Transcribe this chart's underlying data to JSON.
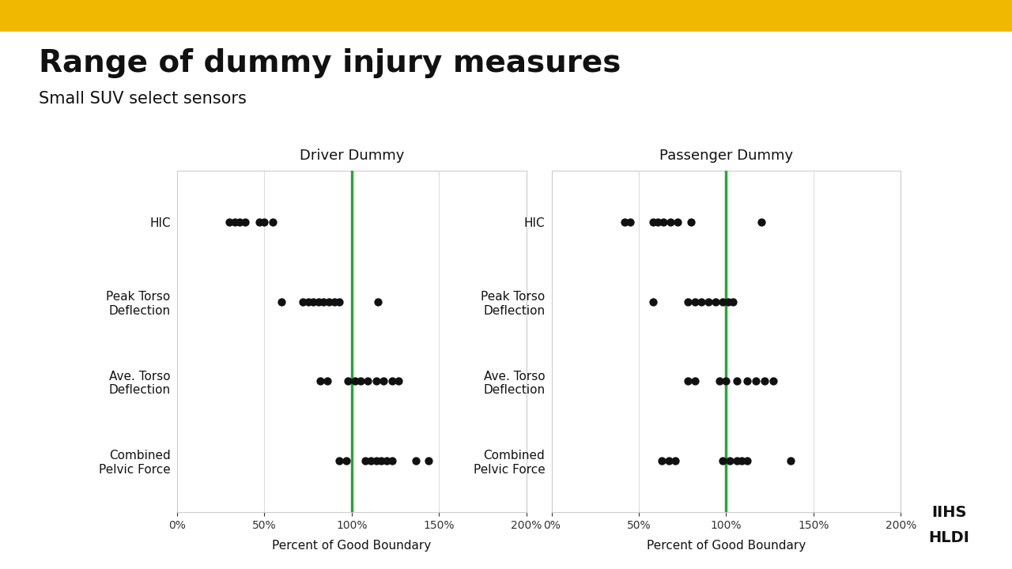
{
  "title": "Range of dummy injury measures",
  "subtitle": "Small SUV select sensors",
  "background_color": "#ffffff",
  "header_bar_color": "#f0b800",
  "green_line": 1.0,
  "xlim": [
    0,
    2.0
  ],
  "xticks": [
    0,
    0.5,
    1.0,
    1.5,
    2.0
  ],
  "xlabel": "Percent of Good Boundary",
  "categories": [
    "HIC",
    "Peak Torso\nDeflection",
    "Ave. Torso\nDeflection",
    "Combined\nPelvic Force"
  ],
  "driver": {
    "title": "Driver Dummy",
    "HIC": [
      0.3,
      0.33,
      0.36,
      0.39,
      0.47,
      0.5,
      0.55
    ],
    "Peak Torso\nDeflection": [
      0.6,
      0.72,
      0.75,
      0.78,
      0.81,
      0.84,
      0.87,
      0.9,
      0.93,
      1.15
    ],
    "Ave. Torso\nDeflection": [
      0.82,
      0.86,
      0.98,
      1.02,
      1.05,
      1.09,
      1.14,
      1.18,
      1.23,
      1.27
    ],
    "Combined\nPelvic Force": [
      0.93,
      0.97,
      1.08,
      1.11,
      1.14,
      1.17,
      1.2,
      1.23,
      1.37,
      1.44
    ]
  },
  "passenger": {
    "title": "Passenger Dummy",
    "HIC": [
      0.42,
      0.45,
      0.58,
      0.61,
      0.64,
      0.68,
      0.72,
      0.8,
      1.2
    ],
    "Peak Torso\nDeflection": [
      0.58,
      0.78,
      0.82,
      0.86,
      0.9,
      0.94,
      0.98,
      1.01,
      1.04
    ],
    "Ave. Torso\nDeflection": [
      0.78,
      0.82,
      0.96,
      1.0,
      1.06,
      1.12,
      1.17,
      1.22,
      1.27
    ],
    "Combined\nPelvic Force": [
      0.63,
      0.67,
      0.71,
      0.98,
      1.02,
      1.06,
      1.09,
      1.12,
      1.37
    ]
  },
  "dot_color": "#111111",
  "dot_size": 55,
  "axis_line_color": "#cccccc",
  "green_color": "#22aa33",
  "cat_fontsize": 11,
  "title_fontsize": 28,
  "subtitle_fontsize": 15,
  "subplot_title_fontsize": 13
}
